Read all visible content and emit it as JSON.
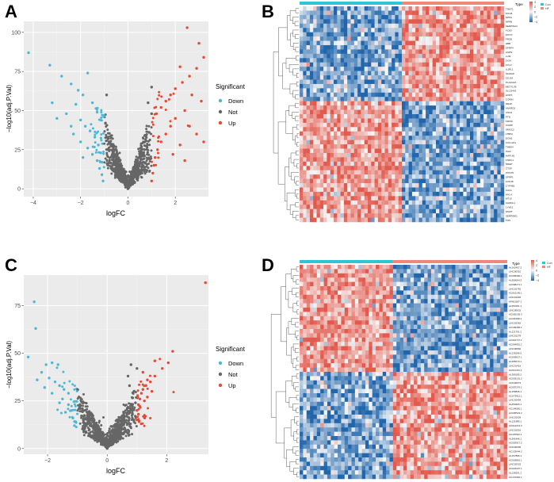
{
  "panels": {
    "a": "A",
    "b": "B",
    "c": "C",
    "d": "D"
  },
  "colors": {
    "down": "#4DB8D4",
    "not": "#666666",
    "up": "#E64A35",
    "heat_low": "#2166AC",
    "heat_mid": "#F7F7F7",
    "heat_high": "#E25A4D",
    "type_con": "#2EC5D6",
    "type_hf": "#F08877",
    "panel_bg": "#EBEBEB"
  },
  "chart_data": [
    {
      "id": "A",
      "type": "scatter",
      "title": "",
      "xlabel": "logFC",
      "ylabel": "−log10(adj.P.Val)",
      "xlim": [
        -4.4,
        3.4
      ],
      "ylim": [
        -5,
        107
      ],
      "xticks": [
        -4,
        -2,
        0,
        2
      ],
      "xtick_labels": [
        "−4",
        "−2",
        "0",
        "2"
      ],
      "yticks": [
        0,
        25,
        50,
        75,
        100
      ],
      "ytick_labels": [
        "0",
        "25",
        "50",
        "75",
        "100"
      ],
      "legend": {
        "title": "Significant",
        "position": "right",
        "items": [
          {
            "label": "Down",
            "color": "#4DB8D4"
          },
          {
            "label": "Not",
            "color": "#666666"
          },
          {
            "label": "Up",
            "color": "#E64A35"
          }
        ]
      },
      "series": [
        {
          "name": "Down",
          "color": "#4DB8D4",
          "points": [
            [
              -4.2,
              87
            ],
            [
              -3.3,
              79
            ],
            [
              -2.8,
              72
            ],
            [
              -2.4,
              67
            ],
            [
              -2.1,
              63
            ],
            [
              -1.9,
              60
            ],
            [
              -1.7,
              74
            ],
            [
              -1.5,
              55
            ],
            [
              -1.3,
              49
            ],
            [
              -2.2,
              54
            ],
            [
              -2.6,
              48
            ],
            [
              -3.0,
              45
            ],
            [
              -3.2,
              55
            ],
            [
              -2.0,
              44
            ],
            [
              -1.8,
              40
            ],
            [
              -1.6,
              37
            ],
            [
              -1.4,
              33
            ],
            [
              -1.25,
              28
            ],
            [
              -1.15,
              23
            ],
            [
              -1.1,
              17
            ],
            [
              -2.3,
              35
            ],
            [
              -2.0,
              30
            ],
            [
              -1.7,
              26
            ],
            [
              -1.5,
              22
            ],
            [
              -1.3,
              18
            ],
            [
              -1.2,
              13
            ],
            [
              -1.1,
              9
            ],
            [
              -1.05,
              5
            ],
            [
              -2.4,
              40
            ],
            [
              -1.9,
              20
            ]
          ]
        },
        {
          "name": "Not",
          "color": "#666666",
          "points": [
            [
              0.0,
              0
            ],
            [
              0.1,
              4
            ],
            [
              -0.2,
              6
            ],
            [
              0.3,
              9
            ],
            [
              -0.4,
              12
            ],
            [
              0.5,
              16
            ],
            [
              -0.6,
              20
            ],
            [
              0.7,
              25
            ],
            [
              -0.8,
              30
            ],
            [
              0.9,
              36
            ],
            [
              -0.95,
              42
            ],
            [
              1.0,
              48
            ],
            [
              -0.7,
              28
            ],
            [
              0.6,
              22
            ],
            [
              -0.5,
              15
            ],
            [
              0.4,
              11
            ],
            [
              -0.3,
              7
            ],
            [
              0.2,
              3
            ],
            [
              -0.1,
              1
            ],
            [
              0.85,
              55
            ],
            [
              -0.9,
              60
            ],
            [
              1.0,
              65
            ]
          ]
        },
        {
          "name": "Up",
          "color": "#E64A35",
          "points": [
            [
              2.5,
              103
            ],
            [
              3.0,
              93
            ],
            [
              3.2,
              84
            ],
            [
              2.9,
              77
            ],
            [
              2.6,
              72
            ],
            [
              2.3,
              68
            ],
            [
              2.0,
              64
            ],
            [
              1.8,
              60
            ],
            [
              1.6,
              56
            ],
            [
              1.4,
              52
            ],
            [
              1.2,
              48
            ],
            [
              2.2,
              78
            ],
            [
              2.7,
              60
            ],
            [
              3.1,
              56
            ],
            [
              2.4,
              50
            ],
            [
              2.0,
              45
            ],
            [
              1.8,
              40
            ],
            [
              1.6,
              35
            ],
            [
              1.4,
              30
            ],
            [
              1.25,
              25
            ],
            [
              1.15,
              20
            ],
            [
              1.1,
              15
            ],
            [
              1.05,
              10
            ],
            [
              1.0,
              5
            ],
            [
              2.6,
              40
            ],
            [
              2.9,
              35
            ],
            [
              3.2,
              30
            ],
            [
              2.2,
              28
            ],
            [
              1.9,
              22
            ],
            [
              2.4,
              18
            ]
          ]
        }
      ]
    },
    {
      "id": "B",
      "type": "heatmap",
      "title": "",
      "annotation_label": "Type",
      "groups": [
        "Con",
        "HF"
      ],
      "group_split": 0.5,
      "colorbar_ticks": [
        "4",
        "2",
        "0",
        "−2",
        "−4"
      ],
      "row_clusters": [
        0.44,
        0.56
      ],
      "row_labels": [
        "TNNT1",
        "MYH6",
        "NPPA",
        "NPPB",
        "SERPINA3",
        "FCN3",
        "MYOT",
        "FRZB",
        "HBB",
        "SFRP4",
        "ASPN",
        "LUM",
        "OGN",
        "CCL2",
        "IL1RL1",
        "S100A8",
        "CD163",
        "PLA2G2A",
        "METTL7B",
        "SLCO4A1",
        "HOPX",
        "CORIN",
        "NRAP",
        "ANKRD2",
        "CNN1",
        "PTN",
        "FMOD",
        "COMP",
        "SMOC2",
        "LTBP2",
        "ECM2",
        "COL14A1",
        "THBS4",
        "ISLR",
        "HAPLN1",
        "FNDC1",
        "NREP",
        "CTGF",
        "POSTN",
        "SFRP1",
        "KCNJ8",
        "CYP4B1",
        "CA14",
        "MYL4",
        "MT1X",
        "CHRDL1",
        "LYVE1",
        "NNMT",
        "SERPINE1",
        "FOS"
      ]
    },
    {
      "id": "C",
      "type": "scatter",
      "title": "",
      "xlabel": "logFC",
      "ylabel": "−log10(adj.P.Val)",
      "xlim": [
        -2.8,
        3.4
      ],
      "ylim": [
        -3,
        91
      ],
      "xticks": [
        -2,
        0,
        2
      ],
      "xtick_labels": [
        "−2",
        "0",
        "2"
      ],
      "yticks": [
        0,
        25,
        50,
        75
      ],
      "ytick_labels": [
        "0",
        "25",
        "50",
        "75"
      ],
      "legend": {
        "title": "Significant",
        "position": "right",
        "items": [
          {
            "label": "Down",
            "color": "#4DB8D4"
          },
          {
            "label": "Not",
            "color": "#666666"
          },
          {
            "label": "Up",
            "color": "#E64A35"
          }
        ]
      },
      "series": [
        {
          "name": "Down",
          "color": "#4DB8D4",
          "points": [
            [
              -2.45,
              77
            ],
            [
              -2.4,
              63
            ],
            [
              -2.65,
              48
            ],
            [
              -2.05,
              44
            ],
            [
              -1.85,
              45
            ],
            [
              -1.65,
              44
            ],
            [
              -2.2,
              40
            ],
            [
              -1.95,
              37
            ],
            [
              -1.75,
              35
            ],
            [
              -1.6,
              33
            ],
            [
              -1.45,
              31
            ],
            [
              -1.3,
              29
            ],
            [
              -2.35,
              36
            ],
            [
              -2.1,
              32
            ],
            [
              -1.85,
              29
            ],
            [
              -1.5,
              26
            ],
            [
              -1.3,
              23
            ],
            [
              -1.2,
              20
            ],
            [
              -1.15,
              16
            ],
            [
              -1.1,
              12
            ],
            [
              -1.6,
              24
            ],
            [
              -1.4,
              19
            ]
          ]
        },
        {
          "name": "Not",
          "color": "#666666",
          "points": [
            [
              0.0,
              0
            ],
            [
              0.1,
              2
            ],
            [
              -0.2,
              3
            ],
            [
              0.3,
              5
            ],
            [
              -0.4,
              6
            ],
            [
              0.5,
              8
            ],
            [
              -0.6,
              10
            ],
            [
              0.7,
              13
            ],
            [
              -0.8,
              15
            ],
            [
              0.85,
              18
            ],
            [
              -0.9,
              21
            ],
            [
              0.95,
              24
            ],
            [
              -0.95,
              27
            ],
            [
              0.9,
              30
            ],
            [
              0.75,
              33
            ],
            [
              0.7,
              38
            ],
            [
              0.8,
              44
            ],
            [
              1.0,
              42
            ],
            [
              -0.7,
              12
            ],
            [
              0.6,
              9
            ]
          ]
        },
        {
          "name": "Up",
          "color": "#E64A35",
          "points": [
            [
              3.3,
              87
            ],
            [
              2.2,
              51
            ],
            [
              2.05,
              45
            ],
            [
              1.85,
              42
            ],
            [
              1.6,
              38
            ],
            [
              1.45,
              35
            ],
            [
              1.3,
              33
            ],
            [
              1.2,
              31
            ],
            [
              1.15,
              29
            ],
            [
              1.1,
              26
            ],
            [
              1.05,
              23
            ],
            [
              1.0,
              20
            ],
            [
              1.5,
              30
            ],
            [
              1.35,
              27
            ],
            [
              1.25,
              25
            ],
            [
              1.1,
              22
            ],
            [
              1.05,
              18
            ],
            [
              1.0,
              15
            ],
            [
              1.6,
              46
            ],
            [
              1.2,
              40
            ],
            [
              1.35,
              36
            ]
          ]
        }
      ]
    },
    {
      "id": "D",
      "type": "heatmap",
      "title": "",
      "annotation_label": "Type",
      "groups": [
        "Con",
        "HF"
      ],
      "group_split": 0.45,
      "colorbar_ticks": [
        "4",
        "2",
        "0",
        "−2",
        "−4"
      ],
      "row_clusters": [
        0.5,
        0.5
      ],
      "row_labels": [
        "AL162457.2",
        "LINC00310",
        "AC005082.1",
        "AL590004.3",
        "AC008271.1",
        "LINC01781",
        "AC010145.1",
        "LINC01094",
        "AP001187.1",
        "AL353151.1",
        "LINC00632",
        "AC092135.3",
        "AL031058.1",
        "LINC02362",
        "AC109466.1",
        "AL121761.2",
        "LINC01278",
        "AC016747.1",
        "AC004951.1",
        "LINC00892",
        "AL139246.5",
        "AC093627.1",
        "AL355073.1",
        "LINC01419",
        "AC011472.2",
        "AL390195.2",
        "AC003101.2",
        "LINC00973",
        "AC097376.1",
        "AL158835.1",
        "AC073912.1",
        "LINC02454",
        "AL450405.1",
        "AC104581.1",
        "AC005523.2",
        "LINC01929",
        "AL121985.1",
        "AC012213.3",
        "LINC01016",
        "AC115522.1",
        "AL591846.1",
        "AC020917.2",
        "LINC00605",
        "AC133644.2",
        "AL157895.1",
        "AC018816.1",
        "LINC02323",
        "AC022007.1",
        "AL136531.1",
        "AC107081.1"
      ]
    }
  ]
}
